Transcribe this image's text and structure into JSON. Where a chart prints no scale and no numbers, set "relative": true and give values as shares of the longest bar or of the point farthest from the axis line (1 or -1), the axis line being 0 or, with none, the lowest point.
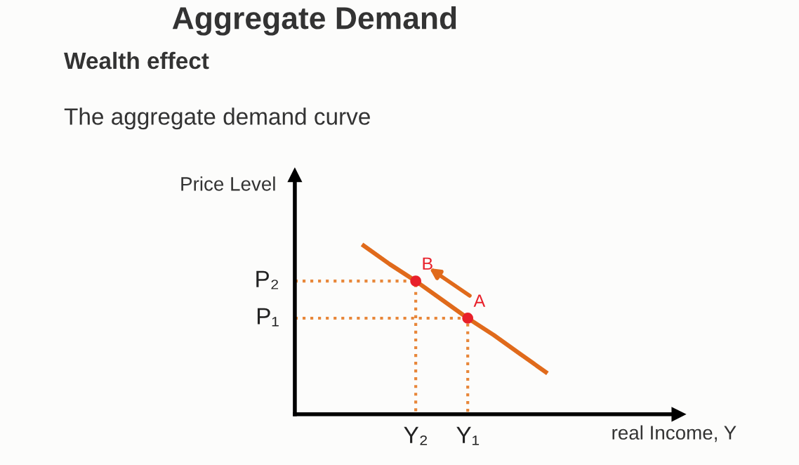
{
  "chart_data": {
    "type": "line",
    "title": "Aggregate Demand",
    "subtitle": "Wealth effect",
    "xlabel": "real Income, Y",
    "ylabel": "Price Level",
    "relative": true,
    "categories": [
      null,
      null,
      null,
      null,
      "Y₂",
      null,
      "Y₁",
      null,
      null,
      null,
      null,
      null,
      null,
      null,
      null
    ],
    "series": [
      {
        "color": "#e06a1b",
        "values": [
          null,
          null,
          1,
          0.89,
          0.79,
          0.68,
          0.57,
          0.47,
          0.36,
          0.25,
          null,
          null,
          null,
          null,
          null
        ]
      },
      {
        "type": "scatter",
        "color": "#e8202a",
        "x": [
          "Y₂",
          "Y₁"
        ],
        "values": [
          0.79,
          0.57
        ],
        "marker": "circle",
        "line_style": "dotted"
      }
    ],
    "annotations": [
      "The aggregate demand curve",
      "P₂",
      "P₁",
      {
        "text": "B",
        "x": "Y₂",
        "y": 0.79
      },
      {
        "text": "A",
        "x": "Y₁",
        "y": 0.57
      }
    ]
  }
}
